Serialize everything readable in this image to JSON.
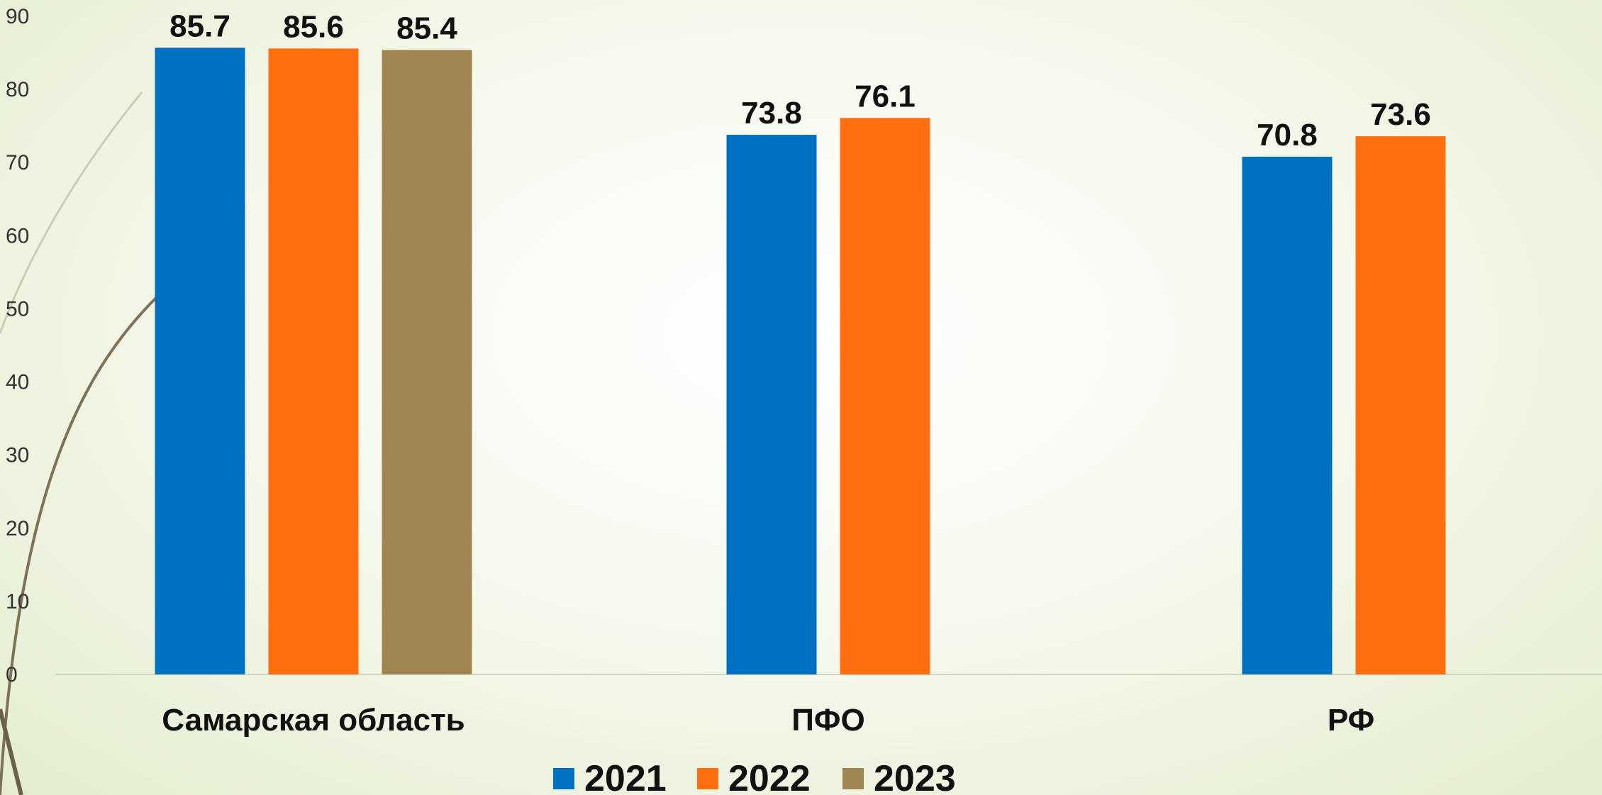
{
  "chart_data": {
    "type": "bar",
    "categories": [
      "Самарская область",
      "ПФО",
      "РФ"
    ],
    "series": [
      {
        "name": "2021",
        "color": "#0070c0",
        "values": [
          85.7,
          73.8,
          70.8
        ]
      },
      {
        "name": "2022",
        "color": "#ff6f0f",
        "values": [
          85.6,
          76.1,
          73.6
        ]
      },
      {
        "name": "2023",
        "color": "#a08553",
        "values": [
          85.4,
          null,
          null
        ]
      }
    ],
    "data_labels": [
      [
        "85.7",
        "73.8",
        "70.8"
      ],
      [
        "85.6",
        "76.1",
        "73.6"
      ],
      [
        "85.4",
        "",
        ""
      ]
    ],
    "y_ticks": [
      "0",
      "10",
      "20",
      "30",
      "40",
      "50",
      "60",
      "70",
      "80",
      "90"
    ],
    "ylim": [
      0,
      90
    ],
    "grid": false,
    "legend_position": "bottom",
    "title": "",
    "xlabel": "",
    "ylabel": ""
  }
}
